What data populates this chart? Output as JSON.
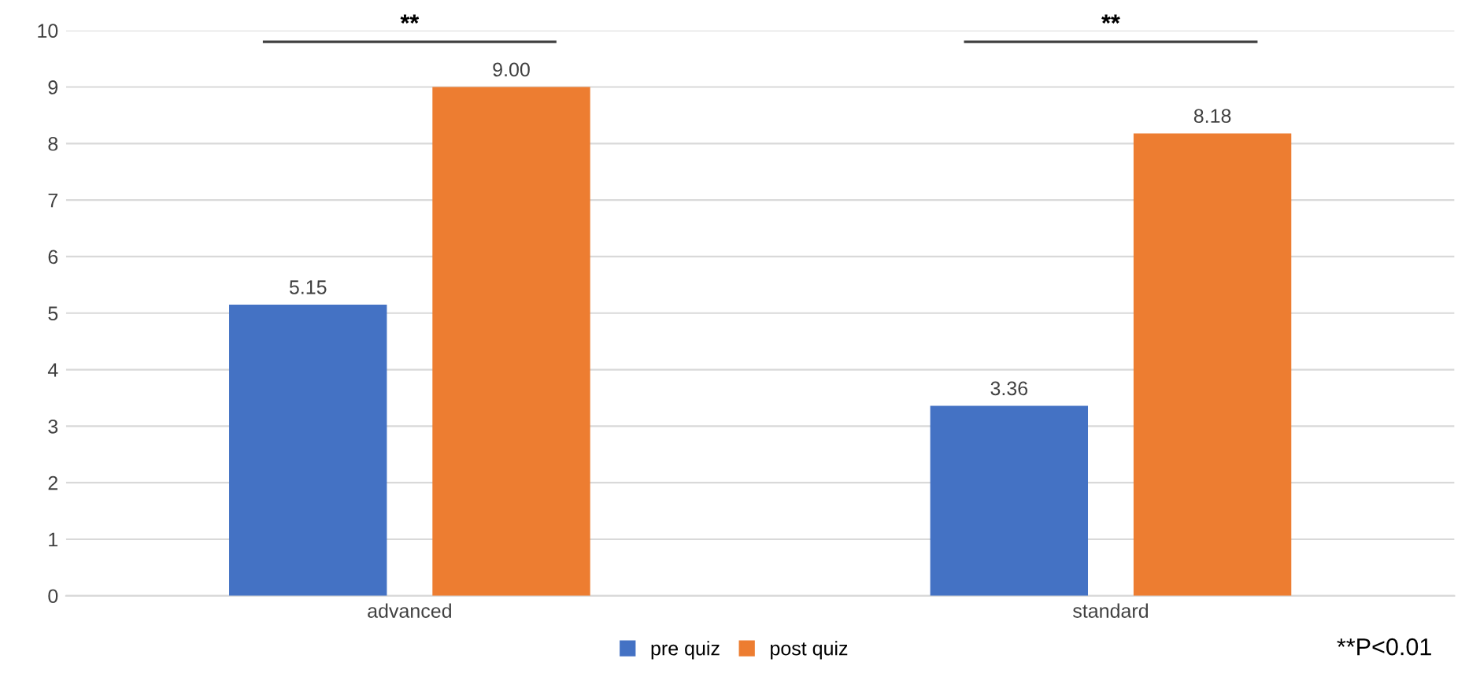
{
  "chart_data": {
    "type": "bar",
    "categories": [
      "advanced",
      "standard"
    ],
    "series": [
      {
        "name": "pre quiz",
        "color": "#4472c4",
        "values": [
          5.15,
          3.36
        ],
        "value_labels": [
          "5.15",
          "3.36"
        ]
      },
      {
        "name": "post quiz",
        "color": "#ed7d31",
        "values": [
          9.0,
          8.18
        ],
        "value_labels": [
          "9.00",
          "8.18"
        ]
      }
    ],
    "ylim": [
      0,
      10
    ],
    "yticks": [
      0,
      1,
      2,
      3,
      4,
      5,
      6,
      7,
      8,
      9,
      10
    ],
    "grid": "y",
    "legend": "bottom",
    "annotations": [
      "**",
      "**",
      "**P<0.01"
    ]
  }
}
